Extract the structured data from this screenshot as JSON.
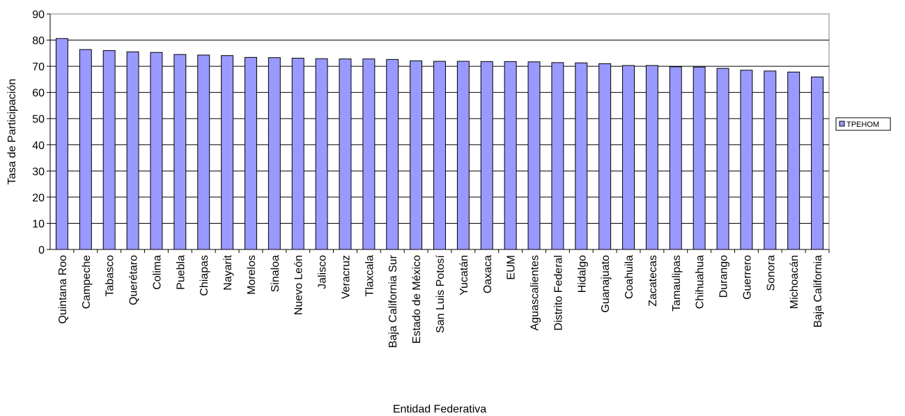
{
  "chart_data": {
    "type": "bar",
    "title": "",
    "xlabel": "Entidad Federativa",
    "ylabel": "Tasa de Participación",
    "ylim": [
      0,
      90
    ],
    "yticks": [
      0,
      10,
      20,
      30,
      40,
      50,
      60,
      70,
      80,
      90
    ],
    "grid": true,
    "legend_position": "right",
    "categories": [
      "Quintana Roo",
      "Campeche",
      "Tabasco",
      "Querétaro",
      "Colima",
      "Puebla",
      "Chiapas",
      "Nayarit",
      "Morelos",
      "Sinaloa",
      "Nuevo León",
      "Jalisco",
      "Veracruz",
      "Tlaxcala",
      "Baja California Sur",
      "Estado de México",
      "San Luis Potosí",
      "Yucatán",
      "Oaxaca",
      "EUM",
      "Aguascalientes",
      "Distrito Federal",
      "Hidalgo",
      "Guanajuato",
      "Coahuila",
      "Zacatecas",
      "Tamaulipas",
      "Chihuahua",
      "Durango",
      "Guerrero",
      "Sonora",
      "Michoacán",
      "Baja California"
    ],
    "series": [
      {
        "name": "TPEHOM",
        "color": "#9999ff",
        "values": [
          80.6,
          76.4,
          76.0,
          75.5,
          75.3,
          74.5,
          74.3,
          74.1,
          73.4,
          73.3,
          73.1,
          72.9,
          72.8,
          72.8,
          72.6,
          72.1,
          71.9,
          71.9,
          71.8,
          71.8,
          71.7,
          71.4,
          71.3,
          71.0,
          70.3,
          70.3,
          69.8,
          69.7,
          69.2,
          68.5,
          68.2,
          67.8,
          65.9
        ]
      }
    ]
  }
}
